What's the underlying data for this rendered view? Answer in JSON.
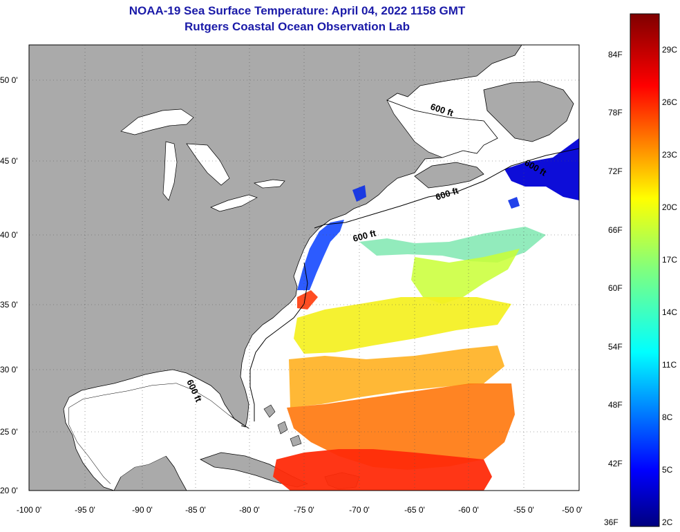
{
  "header": {
    "title": "NOAA-19 Sea Surface Temperature:  April 04, 2022 1158 GMT",
    "subtitle": "Rutgers Coastal Ocean Observation Lab"
  },
  "axes": {
    "lon_labels": [
      "-100 0'",
      "-95 0'",
      "-90 0'",
      "-85 0'",
      "-80 0'",
      "-75 0'",
      "-70 0'",
      "-65 0'",
      "-60 0'",
      "-55 0'",
      "-50 0'"
    ],
    "lat_labels": [
      "50 0'",
      "45 0'",
      "40 0'",
      "35 0'",
      "30 0'",
      "25 0'",
      "20 0'"
    ]
  },
  "contour_label": "600 ft",
  "colorbar": {
    "fahrenheit": [
      "84F",
      "78F",
      "72F",
      "66F",
      "60F",
      "54F",
      "48F",
      "42F",
      "36F"
    ],
    "celsius": [
      "29C",
      "26C",
      "23C",
      "20C",
      "17C",
      "14C",
      "11C",
      "8C",
      "5C",
      "2C"
    ]
  },
  "colors": {
    "land": "#aaaaaa",
    "no_data": "#ffffff",
    "title": "#1a1aa8"
  }
}
